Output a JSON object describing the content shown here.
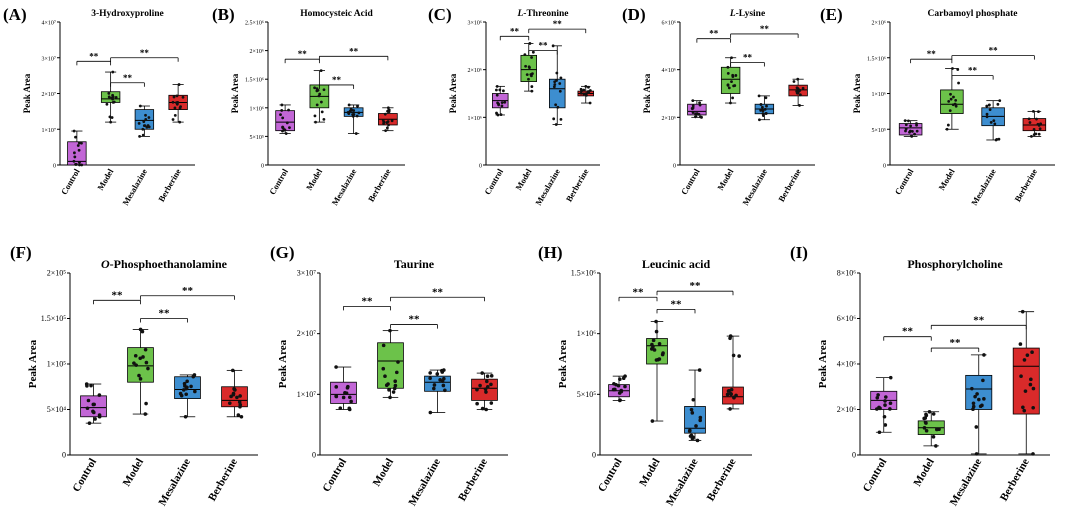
{
  "categories": [
    "Control",
    "Model",
    "Mesalazine",
    "Berberine"
  ],
  "category_colors": [
    "#c266d6",
    "#6cc24a",
    "#3d8ed0",
    "#d92a2a"
  ],
  "significance_label": "**",
  "chart_data": [
    {
      "id": "A",
      "letter": "(A)",
      "type": "box",
      "title": "3-Hydroxyproline",
      "title_italic_prefix": "",
      "ylabel": "Peak Area",
      "ylim": [
        0,
        40000000
      ],
      "yticks": [
        0,
        10000000,
        20000000,
        30000000,
        40000000
      ],
      "ytick_labels": [
        "0",
        "1×10⁷",
        "2×10⁷",
        "3×10⁷",
        "4×10⁷"
      ],
      "boxes": [
        {
          "category": "Control",
          "whisker_low": 0,
          "q1": 0,
          "median": 1000000,
          "q3": 6500000,
          "whisker_high": 9500000
        },
        {
          "category": "Model",
          "whisker_low": 12000000,
          "q1": 17500000,
          "median": 18500000,
          "q3": 20500000,
          "whisker_high": 26000000
        },
        {
          "category": "Mesalazine",
          "whisker_low": 8000000,
          "q1": 10000000,
          "median": 12500000,
          "q3": 15500000,
          "whisker_high": 16500000
        },
        {
          "category": "Berberine",
          "whisker_low": 12000000,
          "q1": 15500000,
          "median": 17500000,
          "q3": 19500000,
          "whisker_high": 22500000
        }
      ],
      "comparisons": [
        {
          "from": "Control",
          "to": "Model",
          "y": 29000000,
          "label": "**"
        },
        {
          "from": "Model",
          "to": "Mesalazine",
          "y": 23000000,
          "label": "**"
        },
        {
          "from": "Model",
          "to": "Berberine",
          "y": 30000000,
          "label": "**"
        }
      ]
    },
    {
      "id": "B",
      "letter": "(B)",
      "type": "box",
      "title": "Homocysteic Acid",
      "title_italic_prefix": "",
      "ylabel": "Peak Area",
      "ylim": [
        0,
        2500000
      ],
      "yticks": [
        0,
        500000,
        1000000,
        1500000,
        2000000,
        2500000
      ],
      "ytick_labels": [
        "0",
        "5×10⁵",
        "1×10⁶",
        "1.5×10⁶",
        "2×10⁶",
        "2.5×10⁶"
      ],
      "boxes": [
        {
          "category": "Control",
          "whisker_low": 550000,
          "q1": 600000,
          "median": 750000,
          "q3": 950000,
          "whisker_high": 1050000
        },
        {
          "category": "Model",
          "whisker_low": 750000,
          "q1": 1000000,
          "median": 1200000,
          "q3": 1400000,
          "whisker_high": 1650000
        },
        {
          "category": "Mesalazine",
          "whisker_low": 550000,
          "q1": 850000,
          "median": 920000,
          "q3": 1000000,
          "whisker_high": 1050000
        },
        {
          "category": "Berberine",
          "whisker_low": 600000,
          "q1": 700000,
          "median": 800000,
          "q3": 900000,
          "whisker_high": 1000000
        }
      ],
      "comparisons": [
        {
          "from": "Control",
          "to": "Model",
          "y": 1850000,
          "label": "**"
        },
        {
          "from": "Model",
          "to": "Mesalazine",
          "y": 1400000,
          "label": "**"
        },
        {
          "from": "Model",
          "to": "Berberine",
          "y": 1900000,
          "label": "**"
        }
      ]
    },
    {
      "id": "C",
      "letter": "(C)",
      "type": "box",
      "title": "-Threonine",
      "title_italic_prefix": "L",
      "ylabel": "Peak Area",
      "ylim": [
        0,
        3000000
      ],
      "yticks": [
        0,
        1000000,
        2000000,
        3000000
      ],
      "ytick_labels": [
        "0",
        "1×10⁶",
        "2×10⁶",
        "3×10⁶"
      ],
      "boxes": [
        {
          "category": "Control",
          "whisker_low": 1050000,
          "q1": 1200000,
          "median": 1350000,
          "q3": 1500000,
          "whisker_high": 1650000
        },
        {
          "category": "Model",
          "whisker_low": 1550000,
          "q1": 1750000,
          "median": 2000000,
          "q3": 2300000,
          "whisker_high": 2550000
        },
        {
          "category": "Mesalazine",
          "whisker_low": 850000,
          "q1": 1200000,
          "median": 1600000,
          "q3": 1800000,
          "whisker_high": 2500000
        },
        {
          "category": "Berberine",
          "whisker_low": 1300000,
          "q1": 1450000,
          "median": 1500000,
          "q3": 1550000,
          "whisker_high": 1650000
        }
      ],
      "comparisons": [
        {
          "from": "Control",
          "to": "Model",
          "y": 2700000,
          "label": "**"
        },
        {
          "from": "Model",
          "to": "Mesalazine",
          "y": 2400000,
          "label": "**"
        },
        {
          "from": "Model",
          "to": "Berberine",
          "y": 2850000,
          "label": "**"
        }
      ]
    },
    {
      "id": "D",
      "letter": "(D)",
      "type": "box",
      "title": "-Lysine",
      "title_italic_prefix": "L",
      "ylabel": "Peak Area",
      "ylim": [
        0,
        6000000
      ],
      "yticks": [
        0,
        2000000,
        4000000,
        6000000
      ],
      "ytick_labels": [
        "0",
        "2×10⁶",
        "4×10⁶",
        "6×10⁶"
      ],
      "boxes": [
        {
          "category": "Control",
          "whisker_low": 2000000,
          "q1": 2100000,
          "median": 2250000,
          "q3": 2550000,
          "whisker_high": 2700000
        },
        {
          "category": "Model",
          "whisker_low": 2600000,
          "q1": 3000000,
          "median": 3600000,
          "q3": 4100000,
          "whisker_high": 4500000
        },
        {
          "category": "Mesalazine",
          "whisker_low": 1900000,
          "q1": 2150000,
          "median": 2350000,
          "q3": 2550000,
          "whisker_high": 2900000
        },
        {
          "category": "Berberine",
          "whisker_low": 2500000,
          "q1": 2900000,
          "median": 3150000,
          "q3": 3350000,
          "whisker_high": 3600000
        }
      ],
      "comparisons": [
        {
          "from": "Control",
          "to": "Model",
          "y": 5300000,
          "label": "**"
        },
        {
          "from": "Model",
          "to": "Mesalazine",
          "y": 4300000,
          "label": "**"
        },
        {
          "from": "Model",
          "to": "Berberine",
          "y": 5500000,
          "label": "**"
        }
      ]
    },
    {
      "id": "E",
      "letter": "(E)",
      "type": "box",
      "title": "Carbamoyl phosphate",
      "title_italic_prefix": "",
      "ylabel": "Peak Area",
      "ylim": [
        0,
        2000000
      ],
      "yticks": [
        0,
        500000,
        1000000,
        1500000,
        2000000
      ],
      "ytick_labels": [
        "0",
        "5×10⁵",
        "1×10⁶",
        "1.5×10⁶",
        "2×10⁶"
      ],
      "boxes": [
        {
          "category": "Control",
          "whisker_low": 400000,
          "q1": 420000,
          "median": 520000,
          "q3": 580000,
          "whisker_high": 620000
        },
        {
          "category": "Model",
          "whisker_low": 500000,
          "q1": 720000,
          "median": 850000,
          "q3": 1050000,
          "whisker_high": 1350000
        },
        {
          "category": "Mesalazine",
          "whisker_low": 350000,
          "q1": 550000,
          "median": 680000,
          "q3": 800000,
          "whisker_high": 900000
        },
        {
          "category": "Berberine",
          "whisker_low": 400000,
          "q1": 480000,
          "median": 560000,
          "q3": 650000,
          "whisker_high": 750000
        }
      ],
      "comparisons": [
        {
          "from": "Control",
          "to": "Model",
          "y": 1480000,
          "label": "**"
        },
        {
          "from": "Model",
          "to": "Mesalazine",
          "y": 1250000,
          "label": "**"
        },
        {
          "from": "Model",
          "to": "Berberine",
          "y": 1530000,
          "label": "**"
        }
      ]
    },
    {
      "id": "F",
      "letter": "(F)",
      "type": "box",
      "title": "-Phosphoethanolamine",
      "title_italic_prefix": "O",
      "ylabel": "Peak Area",
      "ylim": [
        0,
        200000
      ],
      "yticks": [
        0,
        50000,
        100000,
        150000,
        200000
      ],
      "ytick_labels": [
        "0",
        "5×10⁴",
        "1×10⁵",
        "1.5×10⁵",
        "2×10⁵"
      ],
      "boxes": [
        {
          "category": "Control",
          "whisker_low": 35000,
          "q1": 42000,
          "median": 52000,
          "q3": 65000,
          "whisker_high": 78000
        },
        {
          "category": "Model",
          "whisker_low": 45000,
          "q1": 80000,
          "median": 98000,
          "q3": 118000,
          "whisker_high": 138000
        },
        {
          "category": "Mesalazine",
          "whisker_low": 42000,
          "q1": 62000,
          "median": 72000,
          "q3": 86000,
          "whisker_high": 88000
        },
        {
          "category": "Berberine",
          "whisker_low": 42000,
          "q1": 53000,
          "median": 60000,
          "q3": 75000,
          "whisker_high": 93000
        }
      ],
      "comparisons": [
        {
          "from": "Control",
          "to": "Model",
          "y": 170000,
          "label": "**"
        },
        {
          "from": "Model",
          "to": "Mesalazine",
          "y": 150000,
          "label": "**"
        },
        {
          "from": "Model",
          "to": "Berberine",
          "y": 175000,
          "label": "**"
        }
      ]
    },
    {
      "id": "G",
      "letter": "(G)",
      "type": "box",
      "title": "Taurine",
      "title_italic_prefix": "",
      "ylabel": "Peak Area",
      "ylim": [
        0,
        30000000
      ],
      "yticks": [
        0,
        10000000,
        20000000,
        30000000
      ],
      "ytick_labels": [
        "0",
        "1×10⁷",
        "2×10⁷",
        "3×10⁷"
      ],
      "boxes": [
        {
          "category": "Control",
          "whisker_low": 7500000,
          "q1": 8500000,
          "median": 10000000,
          "q3": 12000000,
          "whisker_high": 14500000
        },
        {
          "category": "Model",
          "whisker_low": 9500000,
          "q1": 11000000,
          "median": 15500000,
          "q3": 18500000,
          "whisker_high": 20500000
        },
        {
          "category": "Mesalazine",
          "whisker_low": 7000000,
          "q1": 10500000,
          "median": 12000000,
          "q3": 13000000,
          "whisker_high": 14000000
        },
        {
          "category": "Berberine",
          "whisker_low": 7500000,
          "q1": 9000000,
          "median": 11000000,
          "q3": 12500000,
          "whisker_high": 13500000
        }
      ],
      "comparisons": [
        {
          "from": "Control",
          "to": "Model",
          "y": 24500000,
          "label": "**"
        },
        {
          "from": "Model",
          "to": "Mesalazine",
          "y": 21500000,
          "label": "**"
        },
        {
          "from": "Model",
          "to": "Berberine",
          "y": 26000000,
          "label": "**"
        }
      ]
    },
    {
      "id": "H",
      "letter": "(H)",
      "type": "box",
      "title": "Leucinic acid",
      "title_italic_prefix": "",
      "ylabel": "Peak Area",
      "ylim": [
        0,
        1500000
      ],
      "yticks": [
        0,
        500000,
        1000000,
        1500000
      ],
      "ytick_labels": [
        "0",
        "5×10⁵",
        "1×10⁶",
        "1.5×10⁶"
      ],
      "boxes": [
        {
          "category": "Control",
          "whisker_low": 450000,
          "q1": 480000,
          "median": 530000,
          "q3": 580000,
          "whisker_high": 650000
        },
        {
          "category": "Model",
          "whisker_low": 280000,
          "q1": 750000,
          "median": 900000,
          "q3": 960000,
          "whisker_high": 1100000
        },
        {
          "category": "Mesalazine",
          "whisker_low": 120000,
          "q1": 180000,
          "median": 220000,
          "q3": 400000,
          "whisker_high": 700000
        },
        {
          "category": "Berberine",
          "whisker_low": 380000,
          "q1": 420000,
          "median": 480000,
          "q3": 560000,
          "whisker_high": 980000
        }
      ],
      "comparisons": [
        {
          "from": "Control",
          "to": "Model",
          "y": 1300000,
          "label": "**"
        },
        {
          "from": "Model",
          "to": "Mesalazine",
          "y": 1200000,
          "label": "**"
        },
        {
          "from": "Model",
          "to": "Berberine",
          "y": 1350000,
          "label": "**"
        }
      ]
    },
    {
      "id": "I",
      "letter": "(I)",
      "type": "box",
      "title": "Phosphorylcholine",
      "title_italic_prefix": "",
      "ylabel": "Peak Area",
      "ylim": [
        0,
        8000000
      ],
      "yticks": [
        0,
        2000000,
        4000000,
        6000000,
        8000000
      ],
      "ytick_labels": [
        "0",
        "2×10⁶",
        "4×10⁶",
        "6×10⁶",
        "8×10⁶"
      ],
      "boxes": [
        {
          "category": "Control",
          "whisker_low": 1000000,
          "q1": 2000000,
          "median": 2400000,
          "q3": 2800000,
          "whisker_high": 3400000
        },
        {
          "category": "Model",
          "whisker_low": 400000,
          "q1": 900000,
          "median": 1200000,
          "q3": 1500000,
          "whisker_high": 1900000
        },
        {
          "category": "Mesalazine",
          "whisker_low": 50000,
          "q1": 2000000,
          "median": 2900000,
          "q3": 3500000,
          "whisker_high": 4400000
        },
        {
          "category": "Berberine",
          "whisker_low": 50000,
          "q1": 1800000,
          "median": 3900000,
          "q3": 4700000,
          "whisker_high": 6300000
        }
      ],
      "comparisons": [
        {
          "from": "Control",
          "to": "Model",
          "y": 5200000,
          "label": "**"
        },
        {
          "from": "Model",
          "to": "Mesalazine",
          "y": 4700000,
          "label": "**"
        },
        {
          "from": "Model",
          "to": "Berberine",
          "y": 5700000,
          "label": "**"
        }
      ]
    }
  ]
}
